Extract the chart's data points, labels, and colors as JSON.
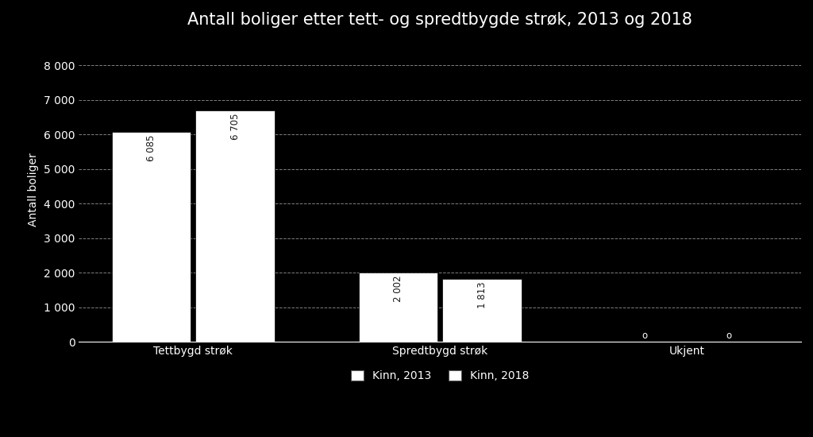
{
  "title": "Antall boliger etter tett- og spredtbygde strøk, 2013 og 2018",
  "ylabel": "Antall boliger",
  "categories": [
    "Tettbygd strøk",
    "Spredtbygd strøk",
    "Ukjent"
  ],
  "series": [
    {
      "label": "Kinn, 2013",
      "values": [
        6085,
        2002,
        0
      ],
      "color": "#ffffff"
    },
    {
      "label": "Kinn, 2018",
      "values": [
        6705,
        1813,
        0
      ],
      "color": "#ffffff"
    }
  ],
  "ylim": [
    0,
    8800
  ],
  "yticks": [
    0,
    1000,
    2000,
    3000,
    4000,
    5000,
    6000,
    7000,
    8000
  ],
  "ytick_labels": [
    "0",
    "1 000",
    "2 000",
    "3 000",
    "4 000",
    "5 000",
    "6 000",
    "7 000",
    "8 000"
  ],
  "background_color": "#000000",
  "text_color": "#ffffff",
  "grid_color": "#ffffff",
  "bar_width": 0.32,
  "bar_gap": 0.02,
  "title_fontsize": 15,
  "label_fontsize": 10,
  "tick_fontsize": 10,
  "annotation_fontsize": 8.5,
  "legend_fontsize": 10,
  "annotation_color_on_white": "#1a1a1a"
}
